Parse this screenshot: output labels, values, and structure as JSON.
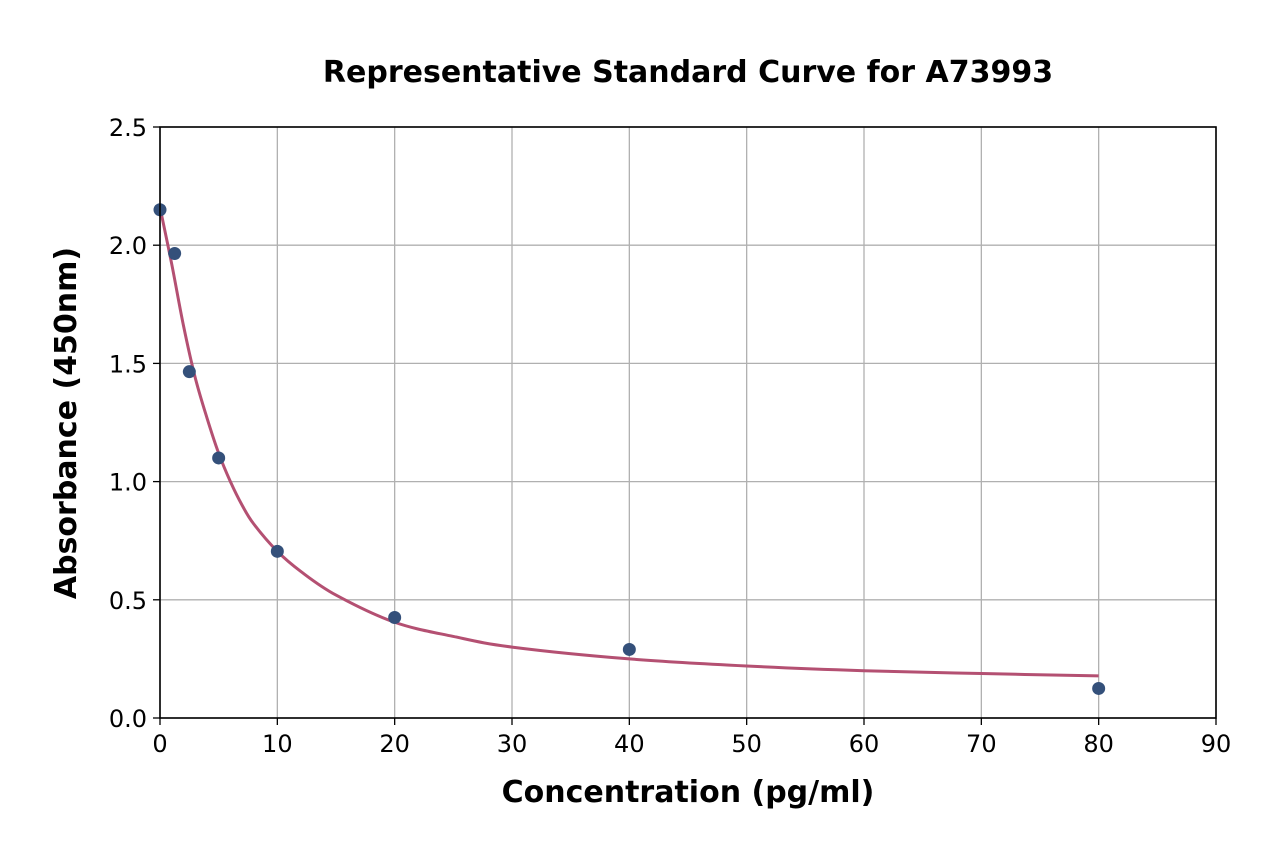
{
  "chart_data": {
    "type": "scatter",
    "title": "Representative Standard Curve for A73993",
    "xlabel": "Concentration (pg/ml)",
    "ylabel": "Absorbance (450nm)",
    "xlim": [
      0,
      90
    ],
    "ylim": [
      0,
      2.5
    ],
    "x_ticks": [
      0,
      10,
      20,
      30,
      40,
      50,
      60,
      70,
      80,
      90
    ],
    "y_ticks": [
      0.0,
      0.5,
      1.0,
      1.5,
      2.0,
      2.5
    ],
    "x_tick_labels": [
      "0",
      "10",
      "20",
      "30",
      "40",
      "50",
      "60",
      "70",
      "80",
      "90"
    ],
    "y_tick_labels": [
      "0.0",
      "0.5",
      "1.0",
      "1.5",
      "2.0",
      "2.5"
    ],
    "grid": true,
    "legend": "none",
    "points": {
      "x": [
        0,
        1.25,
        2.5,
        5,
        10,
        20,
        40,
        80
      ],
      "y": [
        2.15,
        1.965,
        1.465,
        1.1,
        0.705,
        0.425,
        0.29,
        0.125
      ],
      "color": "#34507a"
    },
    "fit_curve": {
      "x": [
        0,
        1,
        2,
        3,
        4,
        5,
        6,
        7,
        8,
        10,
        12,
        15,
        20,
        25,
        30,
        40,
        50,
        60,
        70,
        80
      ],
      "y": [
        2.16,
        1.92,
        1.66,
        1.44,
        1.27,
        1.12,
        1.0,
        0.9,
        0.82,
        0.705,
        0.62,
        0.52,
        0.405,
        0.345,
        0.3,
        0.25,
        0.22,
        0.2,
        0.188,
        0.178
      ],
      "color": "#b45072"
    }
  }
}
